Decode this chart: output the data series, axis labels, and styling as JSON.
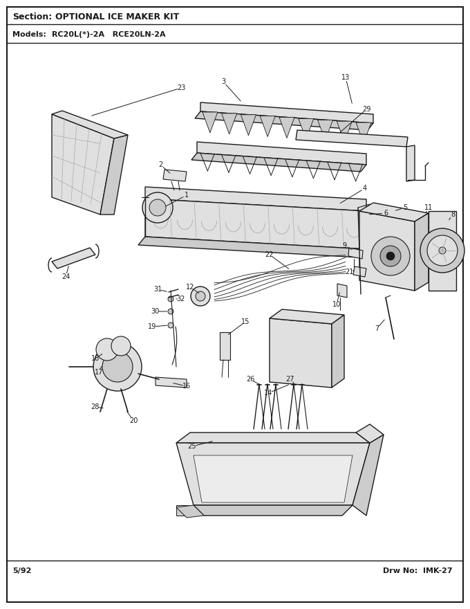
{
  "section_label": "Section:  OPTIONAL ICE MAKER KIT",
  "models_label": "Models:  RC20L(*)-2A   RCE20LN-2A",
  "date_label": "5/92",
  "drw_label": "Drw No:  IMK-27",
  "bg_color": "#ffffff",
  "border_color": "#000000",
  "text_color": "#000000",
  "title_fontsize": 9,
  "label_fontsize": 8,
  "num_fontsize": 7
}
